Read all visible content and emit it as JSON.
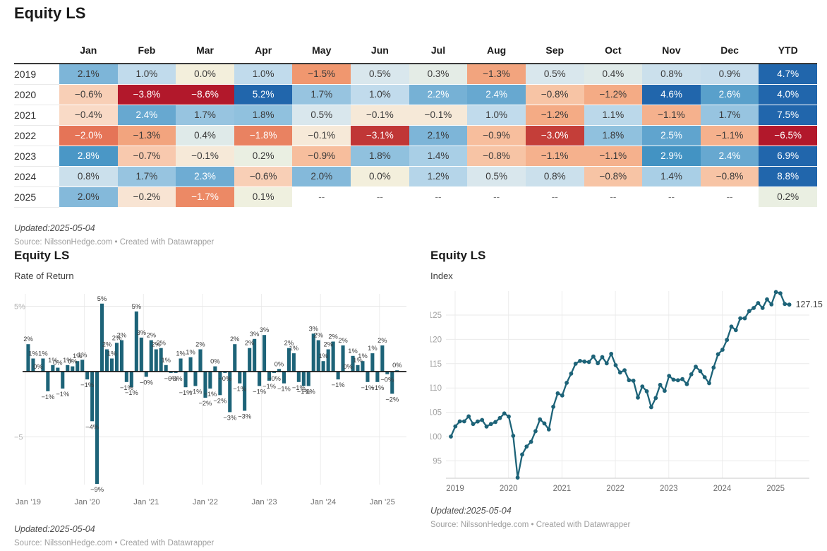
{
  "chart_data": [
    {
      "type": "table",
      "title": "Equity LS",
      "columns": [
        "Jan",
        "Feb",
        "Mar",
        "Apr",
        "May",
        "Jun",
        "Jul",
        "Aug",
        "Sep",
        "Oct",
        "Nov",
        "Dec",
        "YTD"
      ],
      "rows": [
        {
          "year": "2019",
          "values": [
            2.1,
            1.0,
            0.0,
            1.0,
            -1.5,
            0.5,
            0.3,
            -1.3,
            0.5,
            0.4,
            0.8,
            0.9
          ],
          "ytd": 4.7
        },
        {
          "year": "2020",
          "values": [
            -0.6,
            -3.8,
            -8.6,
            5.2,
            1.7,
            1.0,
            2.2,
            2.4,
            -0.8,
            -1.2,
            4.6,
            2.6
          ],
          "ytd": 4.0
        },
        {
          "year": "2021",
          "values": [
            -0.4,
            2.4,
            1.7,
            1.8,
            0.5,
            -0.1,
            -0.1,
            1.0,
            -1.2,
            1.1,
            -1.1,
            1.7
          ],
          "ytd": 7.5
        },
        {
          "year": "2022",
          "values": [
            -2.0,
            -1.3,
            0.4,
            -1.8,
            -0.1,
            -3.1,
            2.1,
            -0.9,
            -3.0,
            1.8,
            2.5,
            -1.1
          ],
          "ytd": -6.5
        },
        {
          "year": "2023",
          "values": [
            2.8,
            -0.7,
            -0.1,
            0.2,
            -0.9,
            1.8,
            1.4,
            -0.8,
            -1.1,
            -1.1,
            2.9,
            2.4
          ],
          "ytd": 6.9
        },
        {
          "year": "2024",
          "values": [
            0.8,
            1.7,
            2.3,
            -0.6,
            2.0,
            0.0,
            1.2,
            0.5,
            0.8,
            -0.8,
            1.4,
            -0.8
          ],
          "ytd": 8.8
        },
        {
          "year": "2025",
          "values": [
            2.0,
            -0.2,
            -1.7,
            0.1,
            null,
            null,
            null,
            null,
            null,
            null,
            null,
            null
          ],
          "ytd": 0.2
        }
      ],
      "empty_cell": "--",
      "updated": "Updated:2025-05-04",
      "source": "Source: NilssonHedge.com • Created with Datawrapper",
      "color_scale": {
        "negative_max": "#b2182b",
        "center": "#f3efdc",
        "positive_max": "#2166ac",
        "stops": [
          [
            -3.5,
            "#b2182b"
          ],
          [
            -3.0,
            "#c43e39"
          ],
          [
            -2.5,
            "#d65948"
          ],
          [
            -2.0,
            "#e57457"
          ],
          [
            -1.5,
            "#f0976f"
          ],
          [
            -1.0,
            "#f6b894"
          ],
          [
            -0.5,
            "#f9d5bf"
          ],
          [
            -0.15,
            "#f8e6d6"
          ],
          [
            0,
            "#f3efdc"
          ],
          [
            0.15,
            "#edf0e0"
          ],
          [
            0.5,
            "#d9e7ed"
          ],
          [
            1.0,
            "#c1dbec"
          ],
          [
            1.5,
            "#a3cce4"
          ],
          [
            2.0,
            "#84b9da"
          ],
          [
            2.5,
            "#60a4ce"
          ],
          [
            3.0,
            "#3c8fc0"
          ],
          [
            3.5,
            "#2166ac"
          ]
        ],
        "white_text_above": 2.2,
        "white_text_below": -1.6
      }
    },
    {
      "type": "bar",
      "title": "Equity LS",
      "subtitle": "Rate of Return",
      "values": [
        2.1,
        1.0,
        0.0,
        1.0,
        -1.5,
        0.5,
        0.3,
        -1.3,
        0.5,
        0.4,
        0.8,
        0.9,
        -0.6,
        -3.8,
        -8.6,
        5.2,
        1.7,
        1.0,
        2.2,
        2.4,
        -0.8,
        -1.2,
        4.6,
        2.6,
        -0.4,
        2.4,
        1.7,
        1.8,
        0.5,
        -0.1,
        -0.1,
        1.0,
        -1.2,
        1.1,
        -1.1,
        1.7,
        -2.0,
        -1.3,
        0.4,
        -1.8,
        -0.1,
        -3.1,
        2.1,
        -0.9,
        -3.0,
        1.8,
        2.5,
        -1.1,
        2.8,
        -0.7,
        -0.1,
        0.2,
        -0.9,
        1.8,
        1.4,
        -0.8,
        -1.1,
        -1.1,
        2.9,
        2.4,
        0.8,
        1.7,
        2.3,
        -0.6,
        2.0,
        0.0,
        1.2,
        0.5,
        0.8,
        -0.8,
        1.4,
        -0.8,
        2.0,
        -0.2,
        -1.7,
        0.1
      ],
      "x_tick_labels": [
        "Jan ’19",
        "Jan ’20",
        "Jan ’21",
        "Jan ’22",
        "Jan ’23",
        "Jan ’24",
        "Jan ’25"
      ],
      "y_ticks": [
        {
          "value": 5,
          "label": "5%"
        },
        {
          "value": -5,
          "label": "−5"
        }
      ],
      "bar_color": "#1d6378",
      "updated": "Updated:2025-05-04",
      "source": "Source: NilssonHedge.com • Created with Datawrapper"
    },
    {
      "type": "line",
      "title": "Equity LS",
      "subtitle": "Index",
      "start": "2018-12",
      "values": [
        100,
        102.1,
        103.12,
        103.12,
        104.15,
        102.59,
        103.1,
        103.41,
        102.07,
        102.58,
        102.99,
        103.81,
        104.75,
        104.12,
        100.16,
        91.55,
        96.31,
        97.95,
        98.93,
        101.1,
        103.53,
        102.7,
        101.47,
        106.14,
        108.89,
        108.46,
        111.06,
        112.95,
        114.98,
        115.56,
        115.44,
        115.33,
        116.48,
        115.08,
        116.35,
        115.07,
        117.02,
        114.68,
        113.19,
        113.65,
        111.6,
        111.49,
        108.03,
        110.3,
        109.31,
        106.03,
        107.94,
        110.64,
        109.42,
        112.48,
        111.7,
        111.58,
        111.81,
        110.8,
        112.8,
        114.37,
        113.46,
        112.21,
        110.98,
        114.2,
        116.94,
        117.87,
        119.88,
        122.63,
        121.9,
        124.33,
        124.33,
        125.83,
        126.46,
        127.47,
        126.45,
        128.22,
        127.19,
        129.74,
        129.48,
        127.28,
        127.15
      ],
      "x_tick_labels": [
        "2019",
        "2020",
        "2021",
        "2022",
        "2023",
        "2024",
        "2025"
      ],
      "y_ticks": [
        95,
        100,
        105,
        110,
        115,
        120,
        125
      ],
      "end_label": "127.15",
      "line_color": "#1d6378",
      "updated": "Updated:2025-05-04",
      "source": "Source: NilssonHedge.com • Created with Datawrapper"
    }
  ]
}
